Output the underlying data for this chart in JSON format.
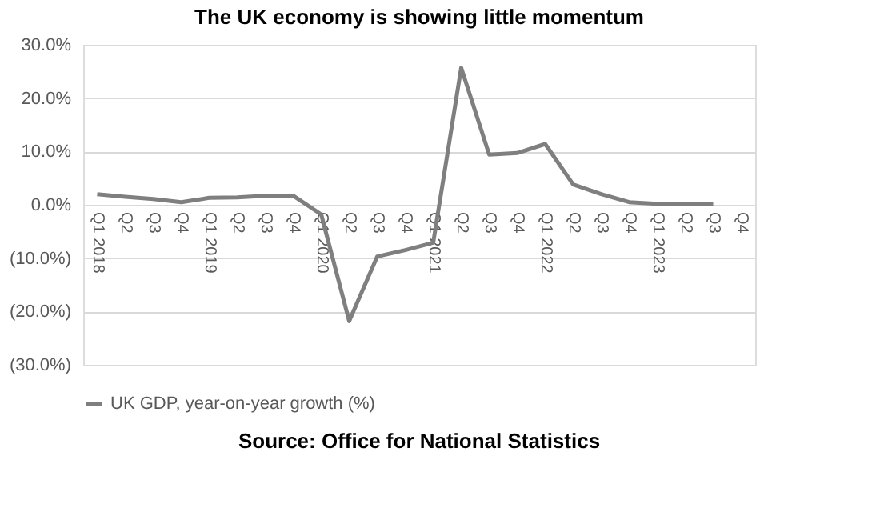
{
  "chart_data": {
    "type": "line",
    "title": "The UK economy is showing little momentum",
    "categories": [
      "Q1 2018",
      "Q2",
      "Q3",
      "Q4",
      "Q1 2019",
      "Q2",
      "Q3",
      "Q4",
      "Q1 2020",
      "Q2",
      "Q3",
      "Q4",
      "Q1 2021",
      "Q2",
      "Q3",
      "Q4",
      "Q1 2022",
      "Q2",
      "Q3",
      "Q4",
      "Q1 2023",
      "Q2",
      "Q3",
      "Q4"
    ],
    "series": [
      {
        "name": "UK GDP, year-on-year growth (%)",
        "color": "#7f7f7f",
        "values": [
          2.0,
          1.5,
          1.1,
          0.5,
          1.3,
          1.4,
          1.7,
          1.7,
          -1.8,
          -21.8,
          -9.7,
          -8.5,
          -7.1,
          25.7,
          9.4,
          9.7,
          11.4,
          3.8,
          2.0,
          0.5,
          0.2,
          0.1,
          0.1,
          null
        ]
      }
    ],
    "ylim": [
      -30,
      30
    ],
    "yticks": [
      {
        "value": -30,
        "label": "(30.0%)"
      },
      {
        "value": -20,
        "label": "(20.0%)"
      },
      {
        "value": -10,
        "label": "(10.0%)"
      },
      {
        "value": 0,
        "label": "0.0%"
      },
      {
        "value": 10,
        "label": "10.0%"
      },
      {
        "value": 20,
        "label": "20.0%"
      },
      {
        "value": 30,
        "label": "30.0%"
      }
    ],
    "grid": "y",
    "legend": "bottom",
    "marker": "none",
    "line_style": "solid",
    "annotations": [
      "Source: Office for National Statistics"
    ]
  }
}
